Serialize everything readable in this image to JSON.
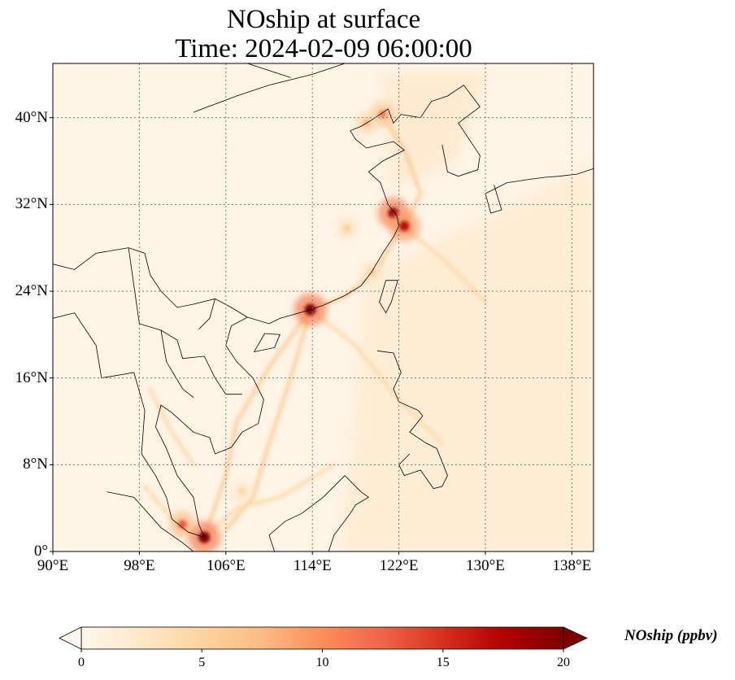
{
  "title": {
    "line1": "NOship at surface",
    "line2": "Time: 2024-02-09 06:00:00"
  },
  "axes": {
    "lon_ticks": [
      "90°E",
      "98°E",
      "106°E",
      "114°E",
      "122°E",
      "130°E",
      "138°E"
    ],
    "lat_ticks": [
      "0°",
      "8°N",
      "16°N",
      "24°N",
      "32°N",
      "40°N"
    ],
    "lon_range": [
      90,
      140
    ],
    "lat_range": [
      0,
      45
    ],
    "gridlines": "dotted"
  },
  "colorbar": {
    "label": "NOship (ppbv)",
    "ticks": [
      "0",
      "5",
      "10",
      "15",
      "20"
    ],
    "range": [
      0,
      20
    ],
    "extend": "both",
    "colormap": "OrRd",
    "stops": [
      "#fff7ec",
      "#fee8c8",
      "#fdd49e",
      "#fdbb84",
      "#fc8d59",
      "#ef6548",
      "#d7301f",
      "#b30000",
      "#7f0000"
    ]
  },
  "chart_data": {
    "type": "heatmap",
    "variable": "NOship",
    "units": "ppbv",
    "title": "NOship at surface",
    "subtitle": "Time: 2024-02-09 06:00:00",
    "xlim": [
      90,
      140
    ],
    "ylim": [
      0,
      45
    ],
    "vmin": 0,
    "vmax": 20,
    "hotspots": [
      {
        "lon": 121.5,
        "lat": 31.2,
        "value": 19
      },
      {
        "lon": 122.5,
        "lat": 30.0,
        "value": 17
      },
      {
        "lon": 113.8,
        "lat": 22.3,
        "value": 20
      },
      {
        "lon": 104.0,
        "lat": 1.3,
        "value": 20
      },
      {
        "lon": 102.0,
        "lat": 2.5,
        "value": 13
      },
      {
        "lon": 120.5,
        "lat": 40.3,
        "value": 11
      },
      {
        "lon": 119.0,
        "lat": 39.5,
        "value": 8
      },
      {
        "lon": 117.2,
        "lat": 29.8,
        "value": 6
      },
      {
        "lon": 119.5,
        "lat": 25.8,
        "value": 6
      },
      {
        "lon": 107.5,
        "lat": 5.5,
        "value": 5
      }
    ]
  }
}
